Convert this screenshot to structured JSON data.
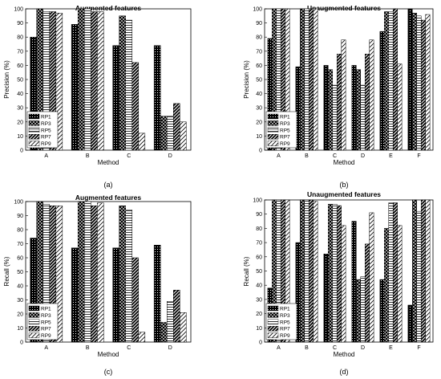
{
  "panels": [
    {
      "id": "a",
      "caption": "(a)"
    },
    {
      "id": "b",
      "caption": "(b)"
    },
    {
      "id": "c",
      "caption": "(c)"
    },
    {
      "id": "d",
      "caption": "(d)"
    }
  ],
  "legend_labels": [
    "RP1",
    "RP3",
    "RP5",
    "RP7",
    "RP9"
  ],
  "chart_data": [
    {
      "type": "bar",
      "title": "Augmented features",
      "xlabel": "Method",
      "ylabel": "Precision (%)",
      "ylim": [
        0,
        100
      ],
      "yticks": [
        0,
        10,
        20,
        30,
        40,
        50,
        60,
        70,
        80,
        90,
        100
      ],
      "categories": [
        "A",
        "B",
        "C",
        "D"
      ],
      "series": [
        {
          "name": "RP1",
          "values": [
            80,
            89,
            74,
            74
          ]
        },
        {
          "name": "RP3",
          "values": [
            100,
            100,
            95,
            24
          ]
        },
        {
          "name": "RP5",
          "values": [
            98,
            100,
            92,
            24
          ]
        },
        {
          "name": "RP7",
          "values": [
            98,
            98,
            62,
            33
          ]
        },
        {
          "name": "RP9",
          "values": [
            97,
            98,
            12,
            20
          ]
        }
      ],
      "legend": "bottom-left",
      "grid": false
    },
    {
      "type": "bar",
      "title": "Unaugmented features",
      "xlabel": "Method",
      "ylabel": "Precision (%)",
      "ylim": [
        0,
        100
      ],
      "yticks": [
        0,
        10,
        20,
        30,
        40,
        50,
        60,
        70,
        80,
        90,
        100
      ],
      "categories": [
        "A",
        "B",
        "C",
        "D",
        "E",
        "F"
      ],
      "series": [
        {
          "name": "RP1",
          "values": [
            79,
            59,
            60,
            60,
            84,
            100
          ]
        },
        {
          "name": "RP3",
          "values": [
            100,
            100,
            57,
            57,
            98,
            97
          ]
        },
        {
          "name": "RP5",
          "values": [
            100,
            100,
            46,
            46,
            98,
            95
          ]
        },
        {
          "name": "RP7",
          "values": [
            100,
            100,
            68,
            68,
            100,
            92
          ]
        },
        {
          "name": "RP9",
          "values": [
            100,
            100,
            78,
            78,
            61,
            96
          ]
        }
      ],
      "legend": "bottom-left",
      "grid": false
    },
    {
      "type": "bar",
      "title": "Augmented features",
      "xlabel": "Method",
      "ylabel": "Recall (%)",
      "ylim": [
        0,
        100
      ],
      "yticks": [
        0,
        10,
        20,
        30,
        40,
        50,
        60,
        70,
        80,
        90,
        100
      ],
      "categories": [
        "A",
        "B",
        "C",
        "D"
      ],
      "series": [
        {
          "name": "RP1",
          "values": [
            74,
            67,
            67,
            69
          ]
        },
        {
          "name": "RP3",
          "values": [
            100,
            100,
            97,
            14
          ]
        },
        {
          "name": "RP5",
          "values": [
            98,
            100,
            94,
            29
          ]
        },
        {
          "name": "RP7",
          "values": [
            97,
            97,
            60,
            37
          ]
        },
        {
          "name": "RP9",
          "values": [
            97,
            99,
            7,
            21
          ]
        }
      ],
      "legend": "bottom-left",
      "grid": false
    },
    {
      "type": "bar",
      "title": "Unaugmented features",
      "xlabel": "Method",
      "ylabel": "Recall (%)",
      "ylim": [
        0,
        100
      ],
      "yticks": [
        0,
        10,
        20,
        30,
        40,
        50,
        60,
        70,
        80,
        90,
        100
      ],
      "categories": [
        "A",
        "B",
        "C",
        "D",
        "E",
        "F"
      ],
      "series": [
        {
          "name": "RP1",
          "values": [
            38,
            70,
            62,
            85,
            44,
            26
          ]
        },
        {
          "name": "RP3",
          "values": [
            100,
            100,
            97,
            44,
            80,
            100
          ]
        },
        {
          "name": "RP5",
          "values": [
            100,
            100,
            97,
            46,
            98,
            92
          ]
        },
        {
          "name": "RP7",
          "values": [
            100,
            100,
            96,
            69,
            98,
            100
          ]
        },
        {
          "name": "RP9",
          "values": [
            100,
            99,
            82,
            91,
            82,
            100
          ]
        }
      ],
      "legend": "bottom-left",
      "grid": false
    }
  ]
}
